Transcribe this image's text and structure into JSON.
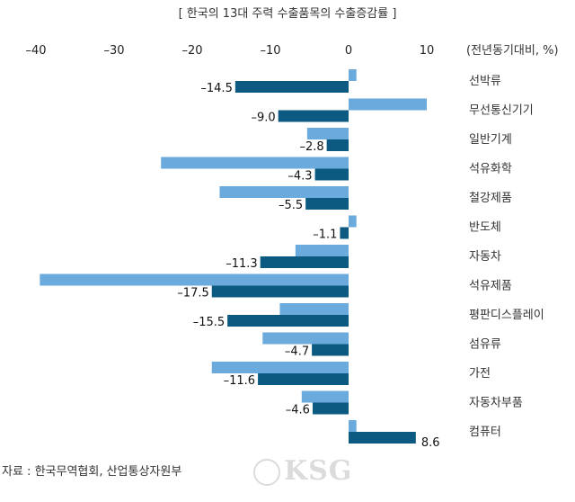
{
  "chart_data": {
    "type": "bar",
    "orientation": "horizontal",
    "title": "[ 한국의 13대 주력 수출품목의 수출증감률 ]",
    "unit_label": "(전년동기대비, %)",
    "xlim": [
      -40,
      10
    ],
    "x_ticks": [
      -40,
      -30,
      -20,
      -10,
      0,
      10
    ],
    "x_tick_labels": [
      "–40",
      "–30",
      "–20",
      "–10",
      "0",
      "10"
    ],
    "categories": [
      "선박류",
      "무선통신기기",
      "일반기계",
      "석유화학",
      "철강제품",
      "반도체",
      "자동차",
      "석유제품",
      "평판디스플레이",
      "섬유류",
      "가전",
      "자동차부품",
      "컴퓨터"
    ],
    "series": [
      {
        "color": "#6aaadc",
        "values": [
          1.0,
          10.0,
          -5.3,
          -24.0,
          -16.5,
          1.0,
          -6.8,
          -39.5,
          -8.8,
          -11.0,
          -17.5,
          -6.0,
          1.0
        ]
      },
      {
        "color": "#0c5a82",
        "values": [
          -14.5,
          -9.0,
          -2.8,
          -4.3,
          -5.5,
          -1.1,
          -11.3,
          -17.5,
          -15.5,
          -4.7,
          -11.6,
          -4.6,
          8.6
        ],
        "labels": [
          "–14.5",
          "–9.0",
          "–2.8",
          "–4.3",
          "–5.5",
          "–1.1",
          "–11.3",
          "–17.5",
          "–15.5",
          "–4.7",
          "–11.6",
          "–4.6",
          "8.6"
        ]
      }
    ],
    "grid": false
  },
  "source": "자료 : 한국무역협회, 산업통상자원부",
  "watermark": "KSG"
}
